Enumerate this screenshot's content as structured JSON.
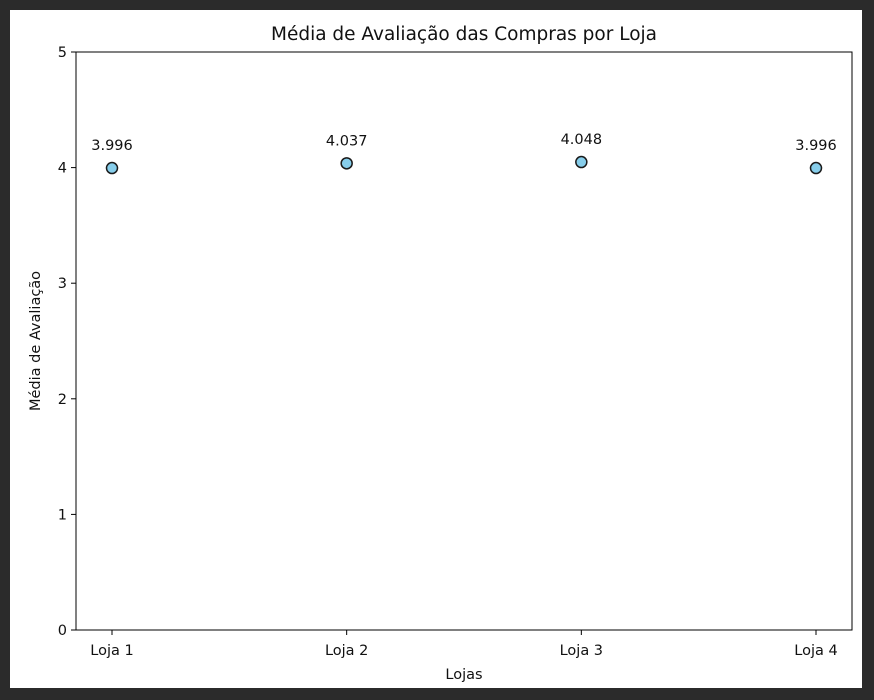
{
  "chart_data": {
    "type": "scatter",
    "title": "Média de Avaliação das Compras por Loja",
    "xlabel": "Lojas",
    "ylabel": "Média de Avaliação",
    "categories": [
      "Loja 1",
      "Loja 2",
      "Loja 3",
      "Loja 4"
    ],
    "values": [
      3.996,
      4.037,
      4.048,
      3.996
    ],
    "data_labels": [
      "3.996",
      "4.037",
      "4.048",
      "3.996"
    ],
    "ylim": [
      0,
      5
    ],
    "yticks": [
      0,
      1,
      2,
      3,
      4,
      5
    ],
    "grid": false,
    "marker_color": "#87ceeb",
    "marker_edge_color": "#1a1a1a"
  },
  "colors": {
    "outer_background": "#2b2b2b",
    "figure_background": "#ffffff",
    "axis": "#000000",
    "text": "#111111"
  }
}
